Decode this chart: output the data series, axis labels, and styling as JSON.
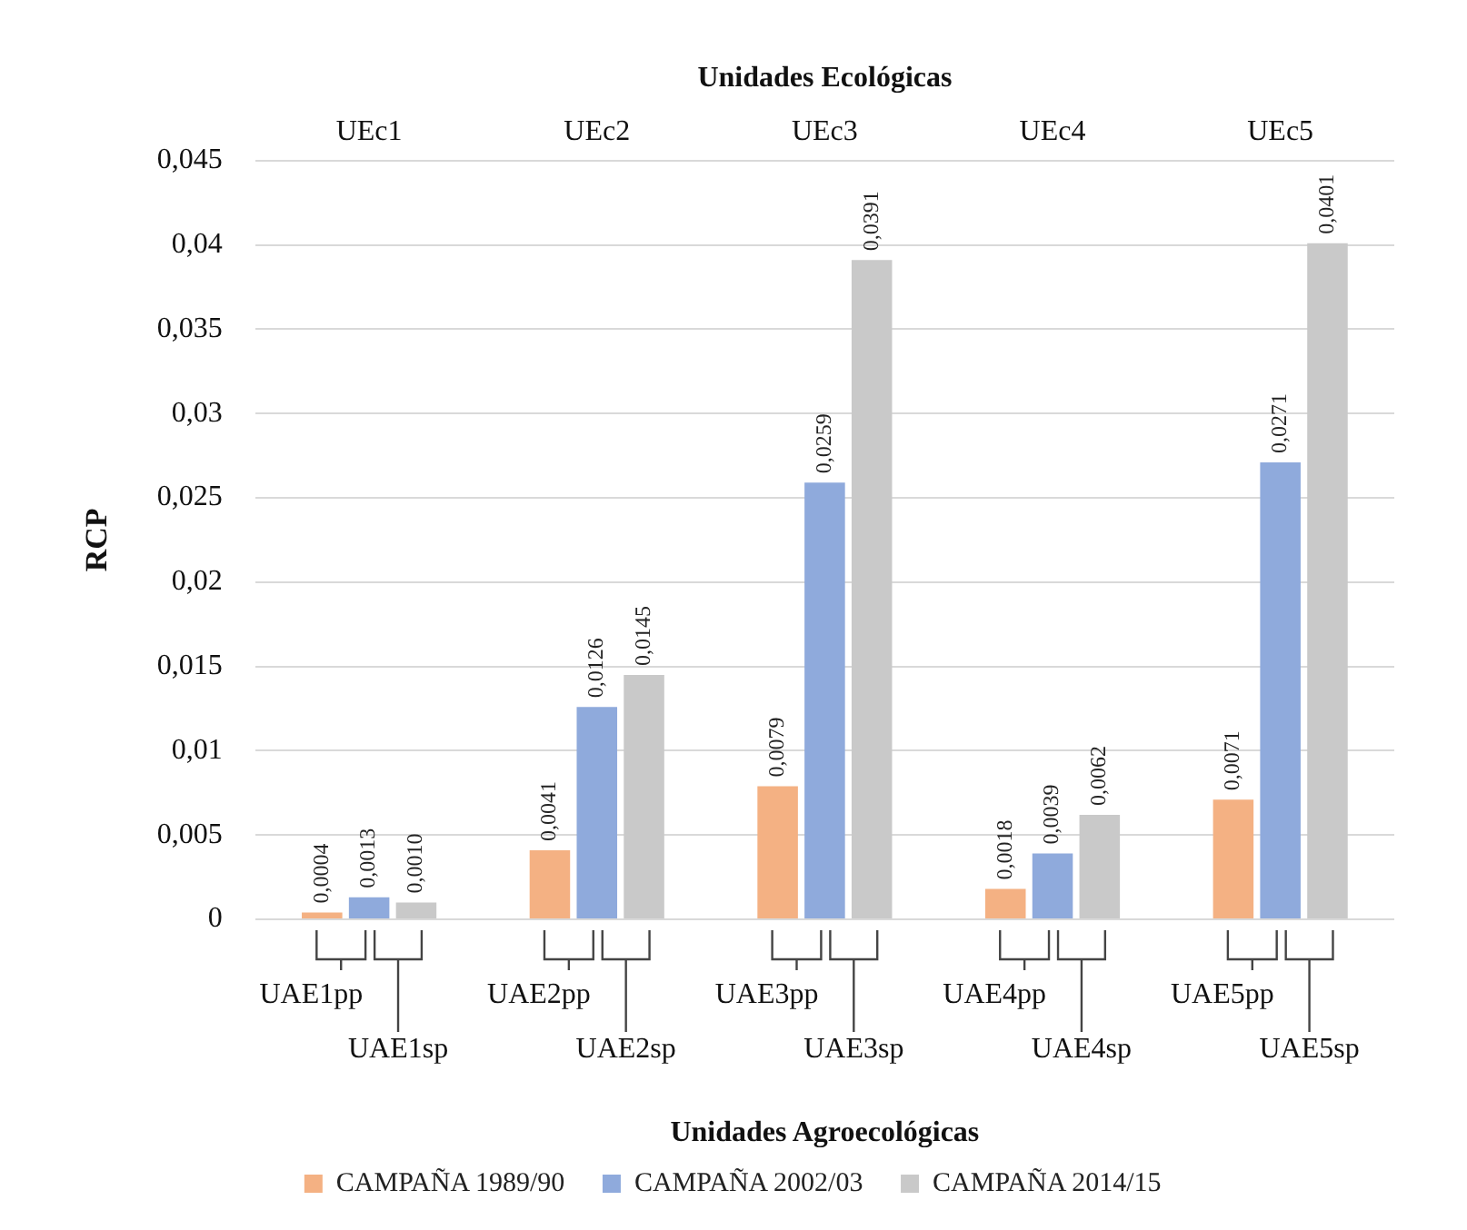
{
  "chart_data": {
    "type": "bar",
    "xlabel": "Unidades Ecológicas",
    "ylabel": "RCP",
    "categories": [
      "UEc1",
      "UEc2",
      "UEc3",
      "UEc4",
      "UEc5"
    ],
    "series": [
      {
        "name": "CAMPAÑA 1989/90",
        "color": "#f4b183",
        "values": [
          0.0004,
          0.0041,
          0.0079,
          0.0018,
          0.0071
        ],
        "value_labels": [
          "0,0004",
          "0,0041",
          "0,0079",
          "0,0018",
          "0,0071"
        ]
      },
      {
        "name": "CAMPAÑA 2002/03",
        "color": "#8faadc",
        "values": [
          0.0013,
          0.0126,
          0.0259,
          0.0039,
          0.0271
        ],
        "value_labels": [
          "0,0013",
          "0,0126",
          "0,0259",
          "0,0039",
          "0,0271"
        ]
      },
      {
        "name": "CAMPAÑA 2014/15",
        "color": "#c9c9c9",
        "values": [
          0.001,
          0.0145,
          0.0391,
          0.0062,
          0.0401
        ],
        "value_labels": [
          "0,0010",
          "0,0145",
          "0,0391",
          "0,0062",
          "0,0401"
        ]
      }
    ],
    "ylim": [
      0,
      0.045
    ],
    "yticks": [
      0,
      {
        "value": 0.005,
        "label": "0,005"
      },
      {
        "value": 0.01,
        "label": "0,01"
      },
      {
        "value": 0.015,
        "label": "0,015"
      },
      {
        "value": 0.02,
        "label": "0,02"
      },
      {
        "value": 0.025,
        "label": "0,025"
      },
      {
        "value": 0.03,
        "label": "0,03"
      },
      {
        "value": 0.035,
        "label": "0,035"
      },
      {
        "value": 0.04,
        "label": "0,04"
      },
      {
        "value": 0.045,
        "label": "0,045"
      }
    ],
    "grid": "y",
    "legend": "bottom",
    "annotations": [
      "UAE1pp",
      "UAE1sp",
      "UAE2pp",
      "UAE2sp",
      "UAE3pp",
      "UAE3sp",
      "UAE4pp",
      "UAE4sp",
      "UAE5pp",
      "UAE5sp",
      "Unidades Agroecológicas"
    ]
  }
}
